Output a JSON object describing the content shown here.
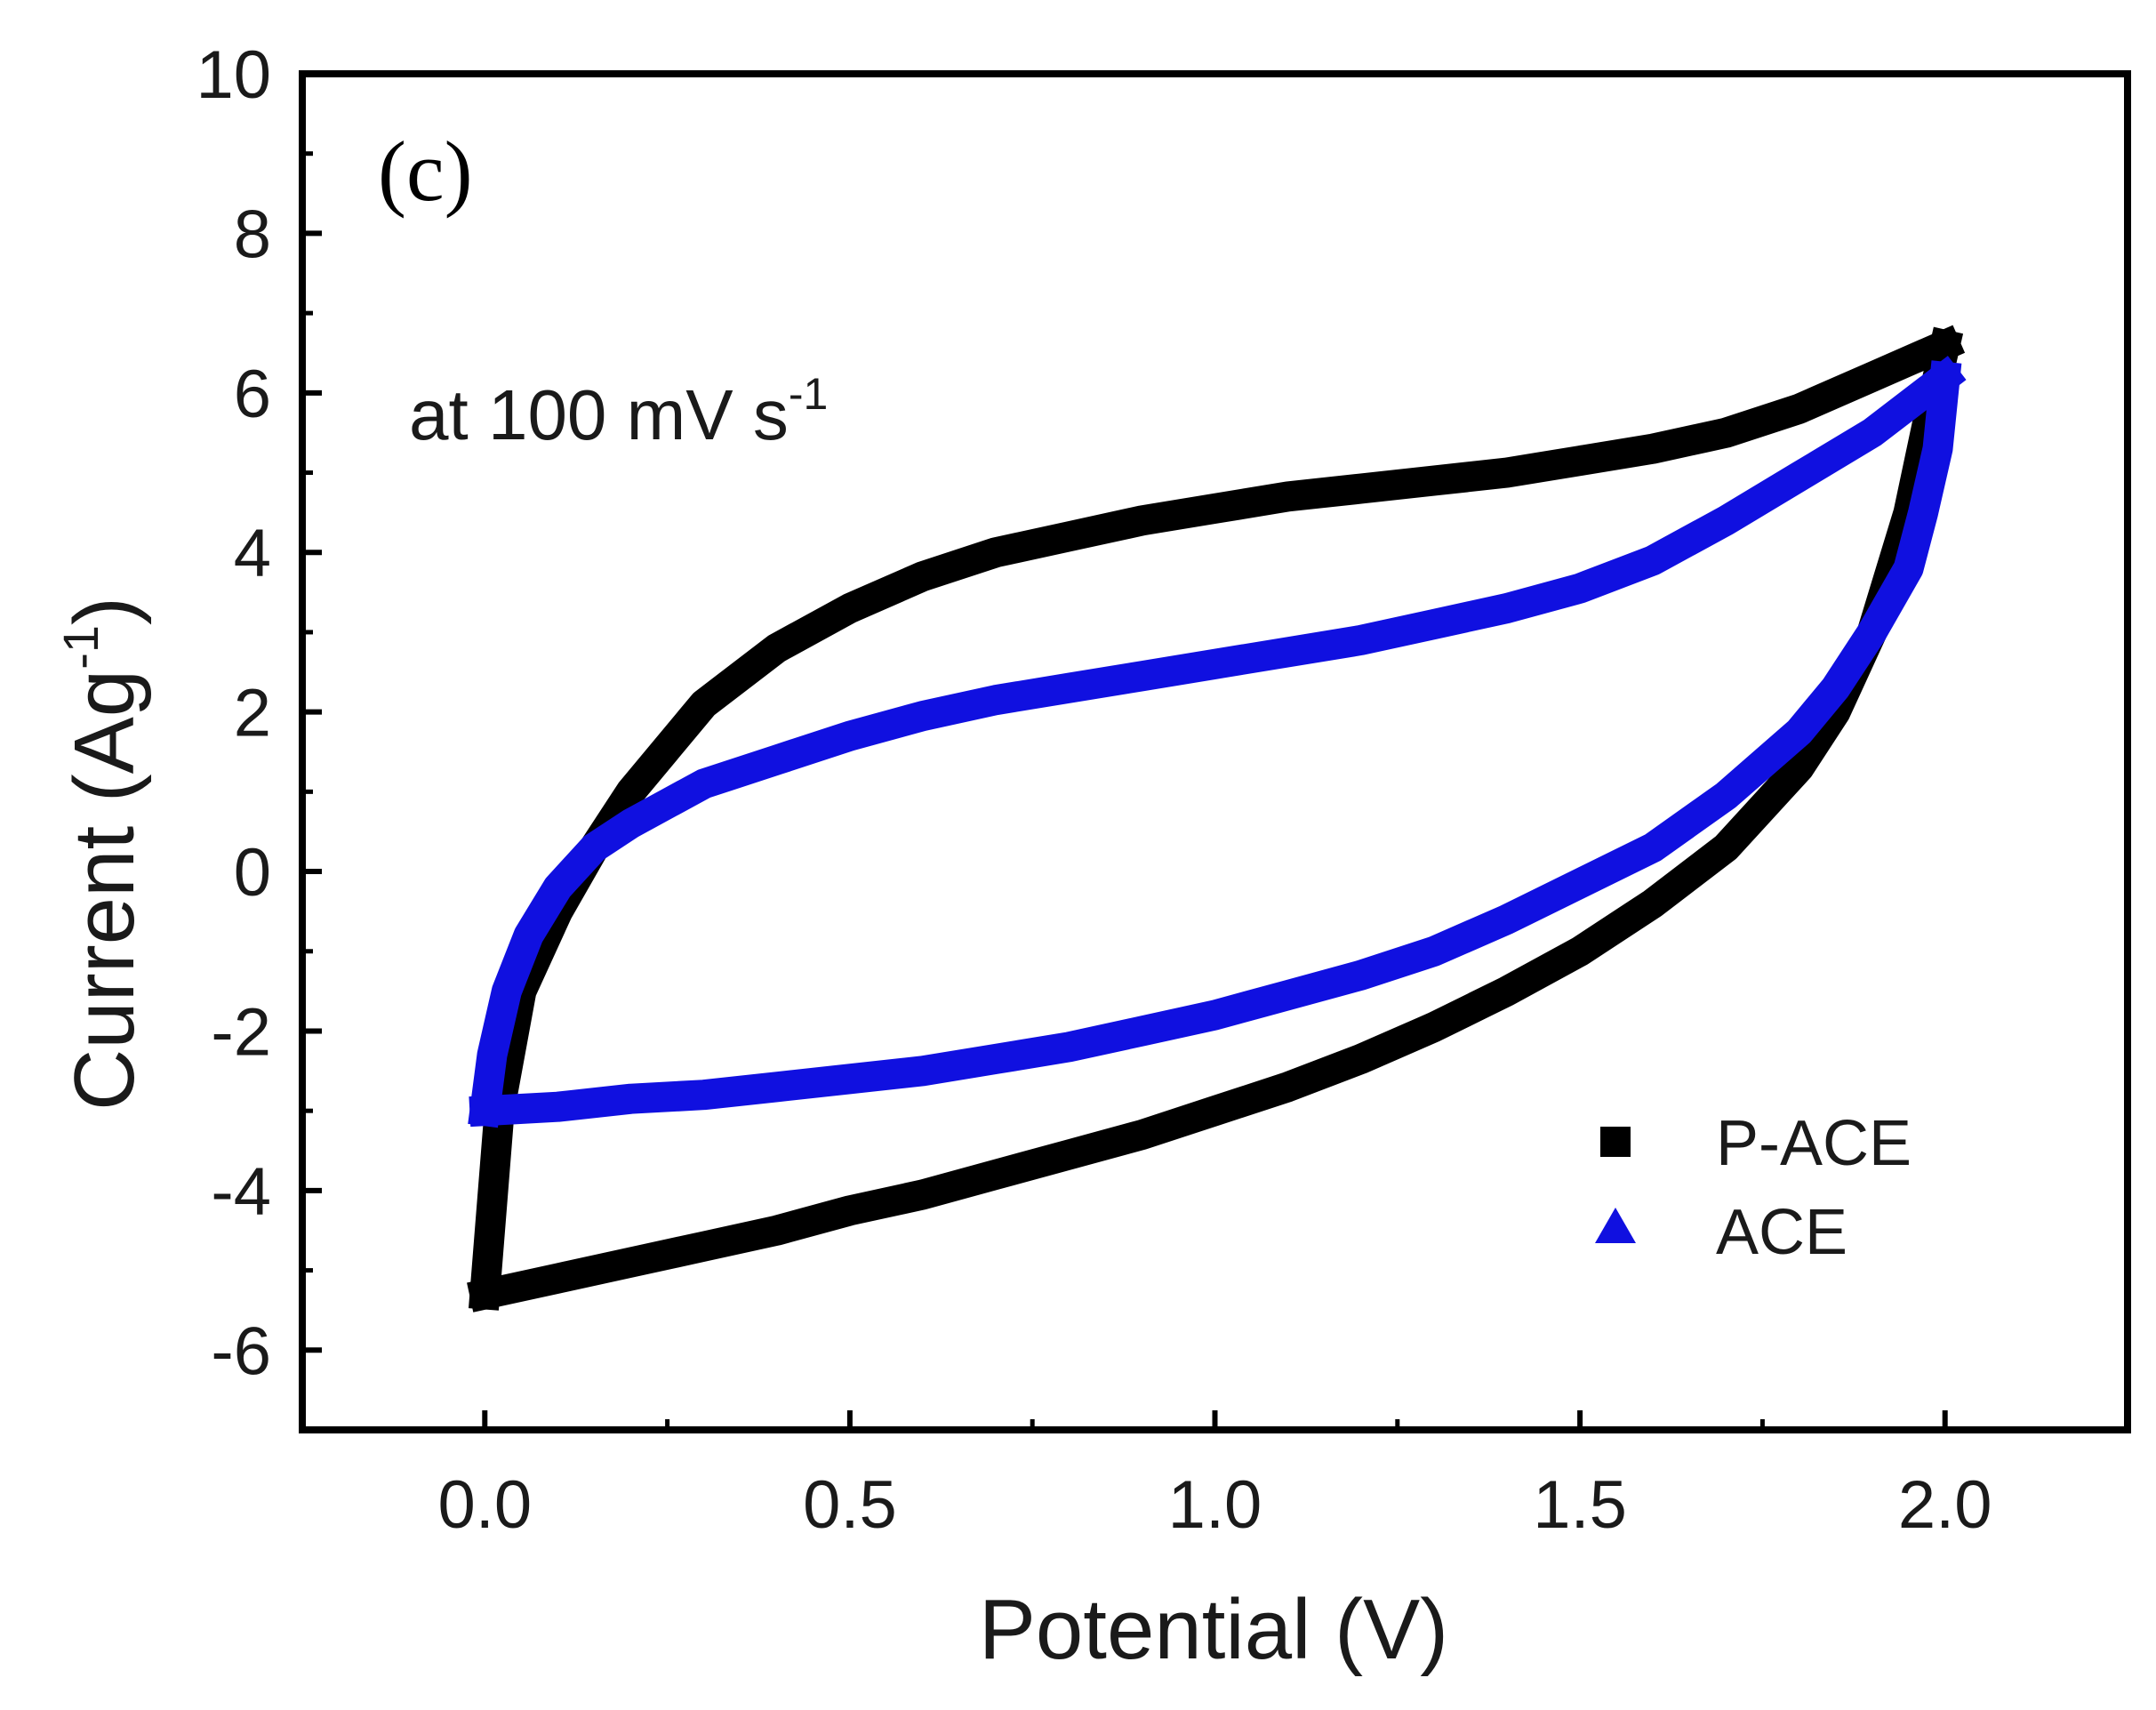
{
  "chart_data": {
    "type": "line",
    "panel_label": "(c)",
    "annotation": {
      "text": "at 100 mV s",
      "superscript": "-1"
    },
    "xlabel": "Potential (V)",
    "ylabel": "Current (Ag",
    "ylabel_sup": "-1",
    "ylabel_close": ")",
    "xlim": [
      -0.25,
      2.25
    ],
    "ylim": [
      -7,
      10
    ],
    "x_ticks": [
      0.0,
      0.5,
      1.0,
      1.5,
      2.0
    ],
    "x_tick_labels": [
      "0.0",
      "0.5",
      "1.0",
      "1.5",
      "2.0"
    ],
    "x_minor_ticks": [
      0.25,
      0.75,
      1.25,
      1.75
    ],
    "y_ticks": [
      -6,
      -4,
      -2,
      0,
      2,
      4,
      6,
      8,
      10
    ],
    "y_tick_labels": [
      "-6",
      "-4",
      "-2",
      "0",
      "2",
      "4",
      "6",
      "8",
      "10"
    ],
    "y_minor_ticks": [
      -5,
      -3,
      -1,
      1,
      3,
      5,
      7,
      9
    ],
    "grid": false,
    "legend_position": "bottom-right",
    "series": [
      {
        "name": "P-ACE",
        "color": "#000000",
        "marker": "square",
        "forward": [
          [
            0.0,
            -5.3
          ],
          [
            0.02,
            -3.0
          ],
          [
            0.05,
            -1.5
          ],
          [
            0.1,
            -0.5
          ],
          [
            0.15,
            0.3
          ],
          [
            0.2,
            1.0
          ],
          [
            0.3,
            2.1
          ],
          [
            0.4,
            2.8
          ],
          [
            0.5,
            3.3
          ],
          [
            0.6,
            3.7
          ],
          [
            0.7,
            4.0
          ],
          [
            0.8,
            4.2
          ],
          [
            0.9,
            4.4
          ],
          [
            1.0,
            4.55
          ],
          [
            1.1,
            4.7
          ],
          [
            1.2,
            4.8
          ],
          [
            1.3,
            4.9
          ],
          [
            1.4,
            5.0
          ],
          [
            1.5,
            5.15
          ],
          [
            1.6,
            5.3
          ],
          [
            1.7,
            5.5
          ],
          [
            1.8,
            5.8
          ],
          [
            1.9,
            6.2
          ],
          [
            2.0,
            6.6
          ]
        ],
        "reverse": [
          [
            2.0,
            6.6
          ],
          [
            1.98,
            5.8
          ],
          [
            1.95,
            4.5
          ],
          [
            1.9,
            3.0
          ],
          [
            1.85,
            2.0
          ],
          [
            1.8,
            1.3
          ],
          [
            1.7,
            0.3
          ],
          [
            1.6,
            -0.4
          ],
          [
            1.5,
            -1.0
          ],
          [
            1.4,
            -1.5
          ],
          [
            1.3,
            -1.95
          ],
          [
            1.2,
            -2.35
          ],
          [
            1.1,
            -2.7
          ],
          [
            1.0,
            -3.0
          ],
          [
            0.9,
            -3.3
          ],
          [
            0.8,
            -3.55
          ],
          [
            0.7,
            -3.8
          ],
          [
            0.6,
            -4.05
          ],
          [
            0.5,
            -4.25
          ],
          [
            0.4,
            -4.5
          ],
          [
            0.3,
            -4.7
          ],
          [
            0.2,
            -4.9
          ],
          [
            0.1,
            -5.1
          ],
          [
            0.0,
            -5.3
          ]
        ]
      },
      {
        "name": "ACE",
        "color": "#1010e0",
        "marker": "triangle",
        "forward": [
          [
            0.0,
            -3.0
          ],
          [
            0.01,
            -2.3
          ],
          [
            0.03,
            -1.5
          ],
          [
            0.06,
            -0.8
          ],
          [
            0.1,
            -0.2
          ],
          [
            0.15,
            0.3
          ],
          [
            0.2,
            0.6
          ],
          [
            0.3,
            1.1
          ],
          [
            0.4,
            1.4
          ],
          [
            0.5,
            1.7
          ],
          [
            0.6,
            1.95
          ],
          [
            0.7,
            2.15
          ],
          [
            0.8,
            2.3
          ],
          [
            0.9,
            2.45
          ],
          [
            1.0,
            2.6
          ],
          [
            1.1,
            2.75
          ],
          [
            1.2,
            2.9
          ],
          [
            1.3,
            3.1
          ],
          [
            1.4,
            3.3
          ],
          [
            1.5,
            3.55
          ],
          [
            1.6,
            3.9
          ],
          [
            1.7,
            4.4
          ],
          [
            1.8,
            4.95
          ],
          [
            1.9,
            5.5
          ],
          [
            2.0,
            6.2
          ]
        ],
        "reverse": [
          [
            2.0,
            6.2
          ],
          [
            1.99,
            5.3
          ],
          [
            1.97,
            4.5
          ],
          [
            1.95,
            3.8
          ],
          [
            1.9,
            3.0
          ],
          [
            1.85,
            2.3
          ],
          [
            1.8,
            1.75
          ],
          [
            1.7,
            0.95
          ],
          [
            1.6,
            0.3
          ],
          [
            1.5,
            -0.15
          ],
          [
            1.4,
            -0.6
          ],
          [
            1.3,
            -1.0
          ],
          [
            1.2,
            -1.3
          ],
          [
            1.1,
            -1.55
          ],
          [
            1.0,
            -1.8
          ],
          [
            0.9,
            -2.0
          ],
          [
            0.8,
            -2.2
          ],
          [
            0.7,
            -2.35
          ],
          [
            0.6,
            -2.5
          ],
          [
            0.5,
            -2.6
          ],
          [
            0.4,
            -2.7
          ],
          [
            0.3,
            -2.8
          ],
          [
            0.2,
            -2.85
          ],
          [
            0.1,
            -2.95
          ],
          [
            0.0,
            -3.0
          ]
        ]
      }
    ]
  }
}
